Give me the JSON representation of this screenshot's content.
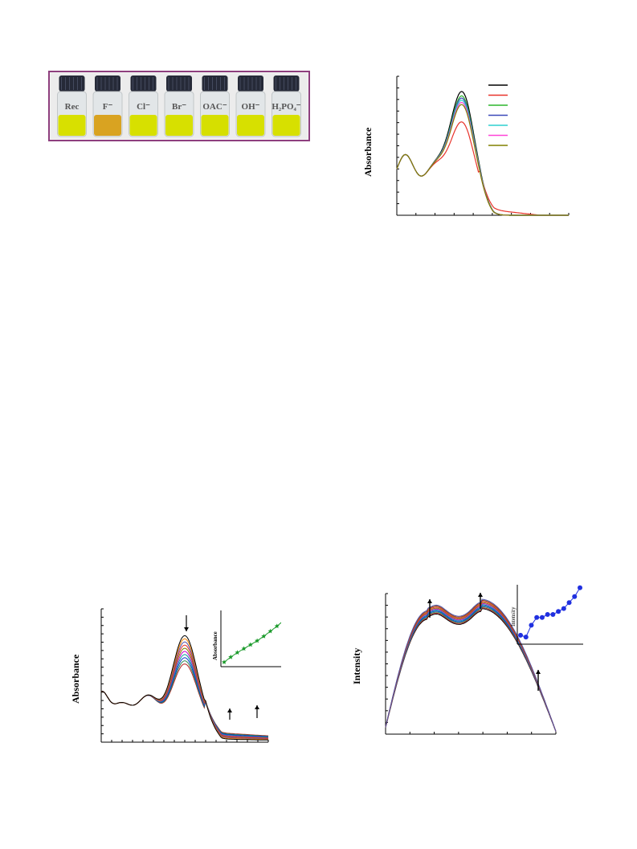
{
  "photo": {
    "vials": [
      {
        "label": "Rec",
        "color": "#d8e000"
      },
      {
        "label": "F⁻",
        "color": "#d9a321"
      },
      {
        "label": "Cl⁻",
        "color": "#d7e000"
      },
      {
        "label": "Br⁻",
        "color": "#d7e000"
      },
      {
        "label": "OAC⁻",
        "color": "#d6df00"
      },
      {
        "label": "OH⁻",
        "color": "#d7e000"
      },
      {
        "label": "H₂PO₄⁻",
        "color": "#d7e000"
      }
    ],
    "frame_color": "#8e3f7e"
  },
  "chart_data": [
    {
      "id": "selectivity-absorbance",
      "type": "line",
      "ylabel": "Absorbance",
      "legend_placement": "top-right",
      "series": [
        {
          "color": "#000000",
          "peak": 1.0
        },
        {
          "color": "#e8332a",
          "peak": 0.72
        },
        {
          "color": "#2db52d",
          "peak": 0.96
        },
        {
          "color": "#3b48b8",
          "peak": 0.94
        },
        {
          "color": "#2fd0d0",
          "peak": 0.92
        },
        {
          "color": "#ff44d8",
          "peak": 0.9
        },
        {
          "color": "#808000",
          "peak": 0.88
        }
      ]
    },
    {
      "id": "titration-absorbance",
      "type": "line",
      "ylabel": "Absorbance",
      "series_count": 10,
      "inset": {
        "type": "line",
        "ylabel": "Absorbance",
        "marker": "star",
        "color": "#1a9a2a",
        "values": [
          0.08,
          0.17,
          0.25,
          0.32,
          0.39,
          0.46,
          0.54,
          0.63,
          0.72,
          0.82
        ]
      }
    },
    {
      "id": "titration-intensity",
      "type": "line",
      "ylabel": "Intensity",
      "series_count": 10,
      "inset": {
        "type": "line",
        "ylabel": "Intensity",
        "marker": "circle",
        "color": "#2030e0",
        "values": [
          0.15,
          0.12,
          0.32,
          0.45,
          0.45,
          0.5,
          0.5,
          0.55,
          0.6,
          0.7,
          0.8,
          0.95
        ]
      }
    }
  ]
}
